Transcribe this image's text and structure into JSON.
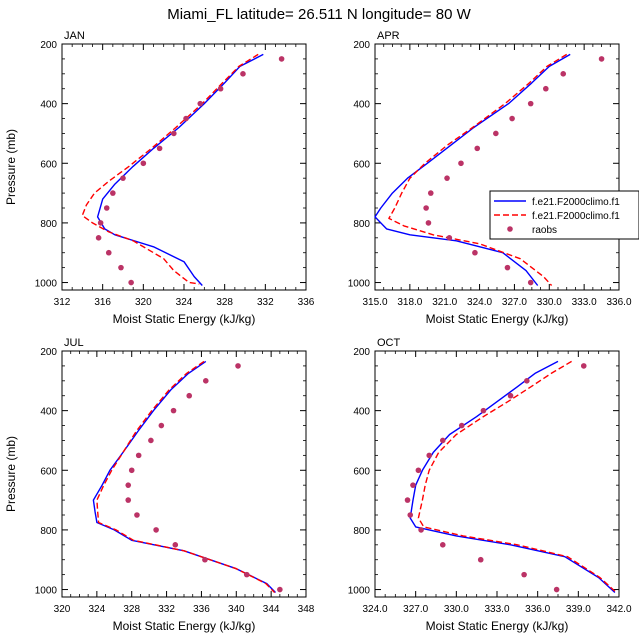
{
  "figure": {
    "title": "Miami_FL  latitude= 26.511 N longitude= 80 W"
  },
  "legend": {
    "position": "right-middle",
    "entries": [
      {
        "label": "f.e21.F2000climo.f1",
        "style": "solid",
        "color": "#0000ff"
      },
      {
        "label": "f.e21.F2000climo.f1",
        "style": "dashed",
        "color": "#ff0000"
      },
      {
        "label": "raobs",
        "style": "dots",
        "color": "#bb3366"
      }
    ]
  },
  "chart_data": [
    {
      "type": "line",
      "title": "JAN",
      "xlabel": "Moist Static Energy (kJ/kg)",
      "ylabel": "Pressure (mb)",
      "xlim": [
        312,
        336
      ],
      "ylim": [
        1025,
        200
      ],
      "xticks": [
        312,
        316,
        320,
        324,
        328,
        332,
        336
      ],
      "xtick_labels": [
        "312",
        "316",
        "320",
        "324",
        "328",
        "332",
        "336"
      ],
      "yticks": [
        200,
        400,
        600,
        800,
        1000
      ],
      "ytick_labels": [
        "200",
        "400",
        "600",
        "800",
        "1000"
      ],
      "series": [
        {
          "name": "f.e21.F2000climo.f1",
          "style": "solid",
          "color": "#0000ff",
          "points": [
            [
              331.8,
              235
            ],
            [
              329.5,
              275
            ],
            [
              328.0,
              330
            ],
            [
              326.0,
              400
            ],
            [
              323.5,
              480
            ],
            [
              321.0,
              550
            ],
            [
              319.0,
              610
            ],
            [
              317.2,
              670
            ],
            [
              316.0,
              720
            ],
            [
              315.5,
              780
            ],
            [
              316.2,
              820
            ],
            [
              317.2,
              840
            ],
            [
              321.0,
              880
            ],
            [
              324.0,
              930
            ],
            [
              325.0,
              980
            ],
            [
              325.8,
              1010
            ]
          ]
        },
        {
          "name": "f.e21.F2000climo.f1",
          "style": "dashed",
          "color": "#ff0000",
          "points": [
            [
              331.3,
              235
            ],
            [
              329.4,
              275
            ],
            [
              327.8,
              330
            ],
            [
              325.8,
              400
            ],
            [
              323.2,
              480
            ],
            [
              320.8,
              550
            ],
            [
              318.6,
              610
            ],
            [
              316.6,
              660
            ],
            [
              315.2,
              700
            ],
            [
              314.4,
              740
            ],
            [
              314.0,
              775
            ],
            [
              315.0,
              800
            ],
            [
              316.6,
              830
            ],
            [
              319.0,
              860
            ],
            [
              322.0,
              920
            ],
            [
              323.0,
              960
            ],
            [
              324.5,
              1000
            ],
            [
              325.5,
              1005
            ]
          ]
        },
        {
          "name": "raobs",
          "style": "dots",
          "color": "#bb3366",
          "points": [
            [
              333.6,
              250
            ],
            [
              329.8,
              300
            ],
            [
              327.6,
              350
            ],
            [
              325.6,
              400
            ],
            [
              324.2,
              450
            ],
            [
              323.0,
              500
            ],
            [
              321.6,
              550
            ],
            [
              320.0,
              600
            ],
            [
              318.0,
              650
            ],
            [
              317.0,
              700
            ],
            [
              316.4,
              750
            ],
            [
              315.8,
              800
            ],
            [
              315.6,
              850
            ],
            [
              316.6,
              900
            ],
            [
              317.8,
              950
            ],
            [
              318.8,
              1000
            ]
          ]
        }
      ]
    },
    {
      "type": "line",
      "title": "APR",
      "xlabel": "Moist Static Energy (kJ/kg)",
      "ylabel": "",
      "xlim": [
        315,
        336
      ],
      "ylim": [
        1025,
        200
      ],
      "xticks": [
        315,
        318,
        321,
        324,
        327,
        330,
        333,
        336
      ],
      "xtick_labels": [
        "315.0",
        "318.0",
        "321.0",
        "324.0",
        "327.0",
        "330.0",
        "333.0",
        "336.0"
      ],
      "yticks": [
        200,
        400,
        600,
        800,
        1000
      ],
      "ytick_labels": [
        "200",
        "400",
        "600",
        "800",
        "1000"
      ],
      "series": [
        {
          "name": "f.e21.F2000climo.f1",
          "style": "solid",
          "color": "#0000ff",
          "points": [
            [
              331.8,
              235
            ],
            [
              330.0,
              275
            ],
            [
              328.5,
              330
            ],
            [
              326.5,
              400
            ],
            [
              323.5,
              480
            ],
            [
              321.5,
              540
            ],
            [
              319.5,
              600
            ],
            [
              317.8,
              650
            ],
            [
              316.5,
              700
            ],
            [
              315.5,
              750
            ],
            [
              315.0,
              780
            ],
            [
              316.0,
              820
            ],
            [
              318.0,
              840
            ],
            [
              322.0,
              860
            ],
            [
              326.0,
              900
            ],
            [
              328.0,
              960
            ],
            [
              329.0,
              1010
            ]
          ]
        },
        {
          "name": "f.e21.F2000climo.f1",
          "style": "dashed",
          "color": "#ff0000",
          "points": [
            [
              331.5,
              235
            ],
            [
              329.8,
              275
            ],
            [
              328.3,
              330
            ],
            [
              326.2,
              400
            ],
            [
              323.4,
              480
            ],
            [
              321.2,
              540
            ],
            [
              319.3,
              600
            ],
            [
              318.0,
              650
            ],
            [
              317.3,
              700
            ],
            [
              316.7,
              750
            ],
            [
              316.2,
              785
            ],
            [
              317.5,
              810
            ],
            [
              320.0,
              840
            ],
            [
              324.0,
              870
            ],
            [
              327.5,
              920
            ],
            [
              329.5,
              980
            ],
            [
              330.2,
              1010
            ]
          ]
        },
        {
          "name": "raobs",
          "style": "dots",
          "color": "#bb3366",
          "points": [
            [
              334.5,
              250
            ],
            [
              331.2,
              300
            ],
            [
              329.7,
              350
            ],
            [
              328.4,
              400
            ],
            [
              326.8,
              450
            ],
            [
              325.4,
              500
            ],
            [
              323.8,
              550
            ],
            [
              322.4,
              600
            ],
            [
              321.2,
              650
            ],
            [
              319.8,
              700
            ],
            [
              319.4,
              750
            ],
            [
              319.6,
              800
            ],
            [
              321.4,
              850
            ],
            [
              323.6,
              900
            ],
            [
              326.4,
              950
            ],
            [
              328.4,
              1000
            ]
          ]
        }
      ]
    },
    {
      "type": "line",
      "title": "JUL",
      "xlabel": "Moist Static Energy (kJ/kg)",
      "ylabel": "Pressure (mb)",
      "xlim": [
        320,
        348
      ],
      "ylim": [
        1025,
        200
      ],
      "xticks": [
        320,
        324,
        328,
        332,
        336,
        340,
        344,
        348
      ],
      "xtick_labels": [
        "320",
        "324",
        "328",
        "332",
        "336",
        "340",
        "344",
        "348"
      ],
      "yticks": [
        200,
        400,
        600,
        800,
        1000
      ],
      "ytick_labels": [
        "200",
        "400",
        "600",
        "800",
        "1000"
      ],
      "series": [
        {
          "name": "f.e21.F2000climo.f1",
          "style": "solid",
          "color": "#0000ff",
          "points": [
            [
              336.5,
              235
            ],
            [
              334.5,
              275
            ],
            [
              332.5,
              330
            ],
            [
              330.5,
              400
            ],
            [
              328.7,
              470
            ],
            [
              327.0,
              540
            ],
            [
              325.5,
              600
            ],
            [
              324.6,
              650
            ],
            [
              323.6,
              700
            ],
            [
              323.8,
              740
            ],
            [
              324.0,
              775
            ],
            [
              326.0,
              800
            ],
            [
              328.0,
              835
            ],
            [
              334.0,
              870
            ],
            [
              340.0,
              930
            ],
            [
              343.5,
              980
            ],
            [
              344.5,
              1010
            ]
          ]
        },
        {
          "name": "f.e21.F2000climo.f1",
          "style": "dashed",
          "color": "#ff0000",
          "points": [
            [
              336.3,
              235
            ],
            [
              334.3,
              275
            ],
            [
              332.3,
              330
            ],
            [
              330.3,
              400
            ],
            [
              328.5,
              470
            ],
            [
              327.0,
              540
            ],
            [
              325.7,
              600
            ],
            [
              324.8,
              650
            ],
            [
              324.0,
              700
            ],
            [
              324.1,
              740
            ],
            [
              324.2,
              775
            ],
            [
              326.2,
              800
            ],
            [
              328.2,
              835
            ],
            [
              334.0,
              870
            ],
            [
              340.0,
              930
            ],
            [
              343.4,
              980
            ],
            [
              344.4,
              1010
            ]
          ]
        },
        {
          "name": "raobs",
          "style": "dots",
          "color": "#bb3366",
          "points": [
            [
              340.2,
              250
            ],
            [
              336.5,
              300
            ],
            [
              334.6,
              350
            ],
            [
              332.8,
              400
            ],
            [
              331.4,
              450
            ],
            [
              330.2,
              500
            ],
            [
              328.8,
              550
            ],
            [
              328.0,
              600
            ],
            [
              327.6,
              650
            ],
            [
              327.6,
              700
            ],
            [
              328.6,
              750
            ],
            [
              330.8,
              800
            ],
            [
              333.0,
              850
            ],
            [
              336.4,
              900
            ],
            [
              341.2,
              950
            ],
            [
              345.0,
              1000
            ]
          ]
        }
      ]
    },
    {
      "type": "line",
      "title": "OCT",
      "xlabel": "Moist Static Energy (kJ/kg)",
      "ylabel": "",
      "xlim": [
        324,
        342
      ],
      "ylim": [
        1025,
        200
      ],
      "xticks": [
        324,
        327,
        330,
        333,
        336,
        339,
        342
      ],
      "xtick_labels": [
        "324.0",
        "327.0",
        "330.0",
        "333.0",
        "336.0",
        "339.0",
        "342.0"
      ],
      "yticks": [
        200,
        400,
        600,
        800,
        1000
      ],
      "ytick_labels": [
        "200",
        "400",
        "600",
        "800",
        "1000"
      ],
      "series": [
        {
          "name": "f.e21.F2000climo.f1",
          "style": "solid",
          "color": "#0000ff",
          "points": [
            [
              337.5,
              235
            ],
            [
              335.8,
              275
            ],
            [
              334.5,
              320
            ],
            [
              333.0,
              370
            ],
            [
              331.5,
              420
            ],
            [
              329.5,
              480
            ],
            [
              328.3,
              540
            ],
            [
              327.5,
              600
            ],
            [
              327.0,
              650
            ],
            [
              326.8,
              700
            ],
            [
              326.6,
              760
            ],
            [
              327.0,
              790
            ],
            [
              330.0,
              820
            ],
            [
              334.0,
              850
            ],
            [
              338.0,
              890
            ],
            [
              340.5,
              960
            ],
            [
              341.7,
              1010
            ]
          ]
        },
        {
          "name": "f.e21.F2000climo.f1",
          "style": "dashed",
          "color": "#ff0000",
          "points": [
            [
              338.5,
              235
            ],
            [
              337.0,
              275
            ],
            [
              335.5,
              320
            ],
            [
              333.8,
              370
            ],
            [
              332.0,
              420
            ],
            [
              330.0,
              480
            ],
            [
              328.7,
              540
            ],
            [
              328.0,
              600
            ],
            [
              327.7,
              650
            ],
            [
              327.5,
              700
            ],
            [
              327.2,
              760
            ],
            [
              327.6,
              790
            ],
            [
              330.5,
              820
            ],
            [
              334.5,
              850
            ],
            [
              338.2,
              890
            ],
            [
              340.6,
              960
            ],
            [
              341.8,
              1010
            ]
          ]
        },
        {
          "name": "raobs",
          "style": "dots",
          "color": "#bb3366",
          "points": [
            [
              339.4,
              250
            ],
            [
              335.2,
              300
            ],
            [
              334.0,
              350
            ],
            [
              332.0,
              400
            ],
            [
              330.4,
              450
            ],
            [
              329.0,
              500
            ],
            [
              328.0,
              550
            ],
            [
              327.2,
              600
            ],
            [
              326.8,
              650
            ],
            [
              326.4,
              700
            ],
            [
              326.6,
              750
            ],
            [
              327.4,
              800
            ],
            [
              329.0,
              850
            ],
            [
              331.8,
              900
            ],
            [
              335.0,
              950
            ],
            [
              337.4,
              1000
            ]
          ]
        }
      ]
    }
  ]
}
